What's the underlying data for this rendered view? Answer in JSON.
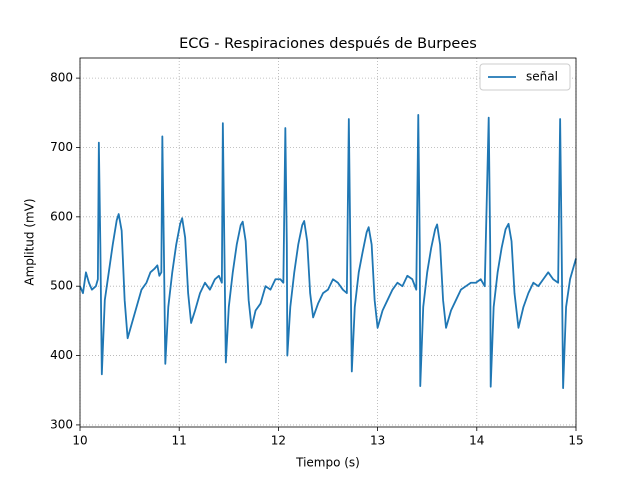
{
  "chart_data": {
    "type": "line",
    "title": "ECG - Respiraciones después de Burpees",
    "x_label": "Tiempo (s)",
    "y_label": "Amplitud (mV)",
    "x": [
      10.0,
      10.03,
      10.06,
      10.09,
      10.12,
      10.16,
      10.18,
      10.19,
      10.205,
      10.22,
      10.25,
      10.29,
      10.33,
      10.37,
      10.39,
      10.42,
      10.45,
      10.48,
      10.52,
      10.57,
      10.62,
      10.67,
      10.71,
      10.75,
      10.78,
      10.8,
      10.82,
      10.83,
      10.845,
      10.86,
      10.89,
      10.93,
      10.97,
      11.01,
      11.03,
      11.06,
      11.09,
      11.12,
      11.16,
      11.21,
      11.26,
      11.31,
      11.36,
      11.4,
      11.43,
      11.44,
      11.455,
      11.47,
      11.5,
      11.54,
      11.58,
      11.62,
      11.64,
      11.67,
      11.7,
      11.73,
      11.77,
      11.82,
      11.87,
      11.92,
      11.97,
      12.02,
      12.05,
      12.07,
      12.085,
      12.09,
      12.12,
      12.16,
      12.2,
      12.24,
      12.26,
      12.29,
      12.32,
      12.35,
      12.4,
      12.45,
      12.5,
      12.55,
      12.6,
      12.65,
      12.69,
      12.71,
      12.725,
      12.74,
      12.77,
      12.81,
      12.85,
      12.89,
      12.91,
      12.94,
      12.97,
      13.0,
      13.05,
      13.1,
      13.15,
      13.2,
      13.25,
      13.3,
      13.35,
      13.39,
      13.41,
      13.425,
      13.43,
      13.46,
      13.5,
      13.54,
      13.58,
      13.6,
      13.63,
      13.66,
      13.69,
      13.74,
      13.79,
      13.84,
      13.89,
      13.94,
      13.99,
      14.04,
      14.08,
      14.12,
      14.135,
      14.14,
      14.17,
      14.21,
      14.25,
      14.29,
      14.32,
      14.35,
      14.38,
      14.42,
      14.47,
      14.52,
      14.57,
      14.62,
      14.67,
      14.72,
      14.77,
      14.82,
      14.84,
      14.855,
      14.87,
      14.9,
      14.94,
      14.97,
      15.0
    ],
    "series": [
      {
        "name": "señal",
        "color": "#1f77b4",
        "values": [
          500,
          490,
          520,
          505,
          495,
          500,
          510,
          707,
          560,
          373,
          480,
          520,
          560,
          595,
          604,
          580,
          480,
          425,
          445,
          470,
          495,
          505,
          520,
          525,
          530,
          515,
          520,
          716,
          560,
          388,
          470,
          520,
          560,
          590,
          598,
          570,
          490,
          447,
          465,
          490,
          505,
          495,
          510,
          515,
          505,
          735,
          560,
          390,
          470,
          520,
          560,
          588,
          593,
          565,
          480,
          440,
          465,
          475,
          500,
          495,
          510,
          510,
          505,
          728,
          560,
          400,
          470,
          520,
          560,
          588,
          594,
          565,
          490,
          455,
          475,
          490,
          495,
          510,
          505,
          495,
          490,
          741,
          560,
          377,
          470,
          520,
          550,
          578,
          585,
          560,
          480,
          440,
          465,
          480,
          495,
          505,
          500,
          515,
          510,
          495,
          747,
          560,
          356,
          470,
          520,
          555,
          582,
          589,
          560,
          480,
          440,
          465,
          480,
          495,
          500,
          505,
          505,
          510,
          500,
          743,
          560,
          355,
          470,
          520,
          555,
          582,
          590,
          565,
          490,
          440,
          470,
          490,
          505,
          500,
          510,
          520,
          510,
          505,
          741,
          560,
          353,
          470,
          510,
          525,
          540
        ]
      }
    ],
    "xlim": [
      10,
      15
    ],
    "xticks": [
      10,
      11,
      12,
      13,
      14,
      15
    ],
    "ylim": [
      297,
      829
    ],
    "yticks": [
      300,
      400,
      500,
      600,
      700,
      800
    ],
    "grid": true,
    "legend": "upper right"
  }
}
